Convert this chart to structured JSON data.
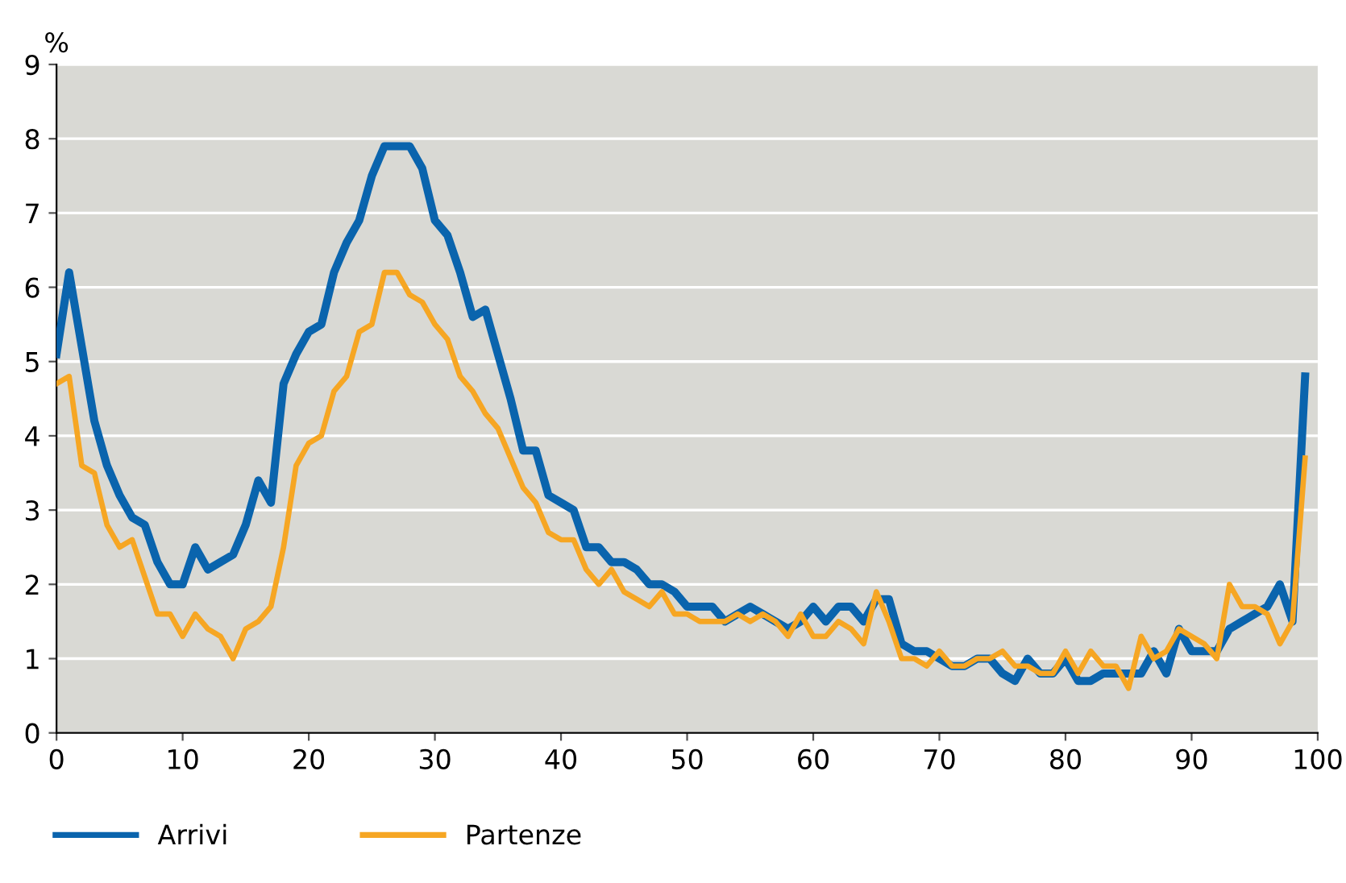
{
  "chart_data": {
    "type": "line",
    "ylabel": "%",
    "xlim": [
      0,
      100
    ],
    "ylim": [
      0,
      9
    ],
    "xticks": [
      0,
      10,
      20,
      30,
      40,
      50,
      60,
      70,
      80,
      90,
      100
    ],
    "yticks": [
      0,
      1,
      2,
      3,
      4,
      5,
      6,
      7,
      8,
      9
    ],
    "grid": "y",
    "legend": "bottom left",
    "marker": "none",
    "line_style": "solid",
    "x": [
      0,
      1,
      2,
      3,
      4,
      5,
      6,
      7,
      8,
      9,
      10,
      11,
      12,
      13,
      14,
      15,
      16,
      17,
      18,
      19,
      20,
      21,
      22,
      23,
      24,
      25,
      26,
      27,
      28,
      29,
      30,
      31,
      32,
      33,
      34,
      35,
      36,
      37,
      38,
      39,
      40,
      41,
      42,
      43,
      44,
      45,
      46,
      47,
      48,
      49,
      50,
      51,
      52,
      53,
      54,
      55,
      56,
      57,
      58,
      59,
      60,
      61,
      62,
      63,
      64,
      65,
      66,
      67,
      68,
      69,
      70,
      71,
      72,
      73,
      74,
      75,
      76,
      77,
      78,
      79,
      80,
      81,
      82,
      83,
      84,
      85,
      86,
      87,
      88,
      89,
      90,
      91,
      92,
      93,
      94,
      95,
      96,
      97,
      98,
      99
    ],
    "series": [
      {
        "name": "Arrivi",
        "color": "#0a64ad",
        "values": [
          5.1,
          6.2,
          5.2,
          4.2,
          3.6,
          3.2,
          2.9,
          2.8,
          2.3,
          2.0,
          2.0,
          2.5,
          2.2,
          2.3,
          2.4,
          2.8,
          3.4,
          3.1,
          4.7,
          5.1,
          5.4,
          5.5,
          6.2,
          6.6,
          6.9,
          7.5,
          7.9,
          7.9,
          7.9,
          7.6,
          6.9,
          6.7,
          6.2,
          5.6,
          5.7,
          5.1,
          4.5,
          3.8,
          3.8,
          3.2,
          3.1,
          3.0,
          2.5,
          2.5,
          2.3,
          2.3,
          2.2,
          2.0,
          2.0,
          1.9,
          1.7,
          1.7,
          1.7,
          1.5,
          1.6,
          1.7,
          1.6,
          1.5,
          1.4,
          1.5,
          1.7,
          1.5,
          1.7,
          1.7,
          1.5,
          1.8,
          1.8,
          1.2,
          1.1,
          1.1,
          1.0,
          0.9,
          0.9,
          1.0,
          1.0,
          0.8,
          0.7,
          1.0,
          0.8,
          0.8,
          1.0,
          0.7,
          0.7,
          0.8,
          0.8,
          0.8,
          0.8,
          1.1,
          0.8,
          1.4,
          1.1,
          1.1,
          1.1,
          1.4,
          1.5,
          1.6,
          1.7,
          2.0,
          1.5,
          4.8
        ]
      },
      {
        "name": "Partenze",
        "color": "#f6a623",
        "values": [
          4.7,
          4.8,
          3.6,
          3.5,
          2.8,
          2.5,
          2.6,
          2.1,
          1.6,
          1.6,
          1.3,
          1.6,
          1.4,
          1.3,
          1.0,
          1.4,
          1.5,
          1.7,
          2.5,
          3.6,
          3.9,
          4.0,
          4.6,
          4.8,
          5.4,
          5.5,
          6.2,
          6.2,
          5.9,
          5.8,
          5.5,
          5.3,
          4.8,
          4.6,
          4.3,
          4.1,
          3.7,
          3.3,
          3.1,
          2.7,
          2.6,
          2.6,
          2.2,
          2.0,
          2.2,
          1.9,
          1.8,
          1.7,
          1.9,
          1.6,
          1.6,
          1.5,
          1.5,
          1.5,
          1.6,
          1.5,
          1.6,
          1.5,
          1.3,
          1.6,
          1.3,
          1.3,
          1.5,
          1.4,
          1.2,
          1.9,
          1.5,
          1.0,
          1.0,
          0.9,
          1.1,
          0.9,
          0.9,
          1.0,
          1.0,
          1.1,
          0.9,
          0.9,
          0.8,
          0.8,
          1.1,
          0.8,
          1.1,
          0.9,
          0.9,
          0.6,
          1.3,
          1.0,
          1.1,
          1.4,
          1.3,
          1.2,
          1.0,
          2.0,
          1.7,
          1.7,
          1.6,
          1.2,
          1.5,
          3.7
        ]
      }
    ]
  }
}
